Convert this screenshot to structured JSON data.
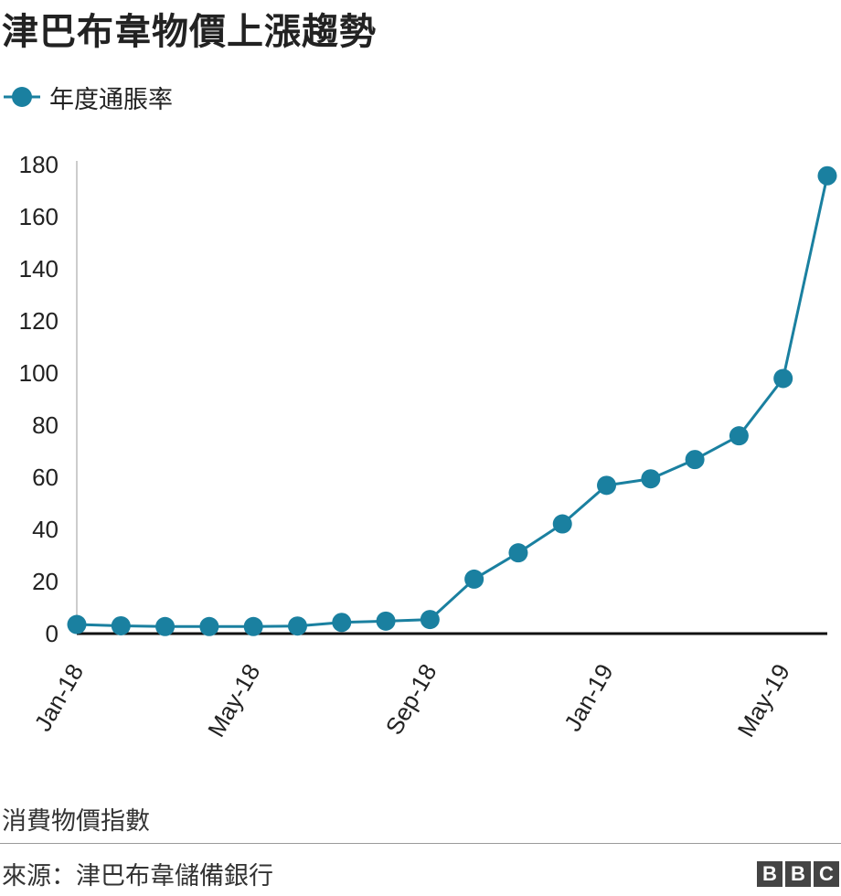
{
  "title": "津巴布韋物價上漲趨勢",
  "note": "消費物價指數",
  "source": "來源：津巴布韋儲備銀行",
  "logo": [
    "B",
    "B",
    "C"
  ],
  "colors": {
    "series": "#1a80a0",
    "axis": "#222222",
    "baseline": "#111111",
    "grid_axis": "#cccccc"
  },
  "chart_data": {
    "type": "line",
    "title": "",
    "xlabel": "",
    "ylabel": "",
    "ylim": [
      0,
      180
    ],
    "yticks": [
      0,
      20,
      40,
      60,
      80,
      100,
      120,
      140,
      160,
      180
    ],
    "x": [
      "Jan-18",
      "Feb-18",
      "Mar-18",
      "Apr-18",
      "May-18",
      "Jun-18",
      "Jul-18",
      "Aug-18",
      "Sep-18",
      "Oct-18",
      "Nov-18",
      "Dec-18",
      "Jan-19",
      "Feb-19",
      "Mar-19",
      "Apr-19",
      "May-19",
      "Jun-19"
    ],
    "xtick_labels": [
      "Jan-18",
      "May-18",
      "Sep-18",
      "Jan-19",
      "May-19"
    ],
    "series": [
      {
        "name": "年度通脹率",
        "values": [
          3.5,
          3.0,
          2.7,
          2.7,
          2.7,
          2.9,
          4.3,
          4.8,
          5.4,
          20.9,
          31.0,
          42.1,
          56.9,
          59.4,
          66.8,
          75.9,
          97.9,
          175.7
        ]
      }
    ],
    "legend": "top-left",
    "grid": false
  }
}
